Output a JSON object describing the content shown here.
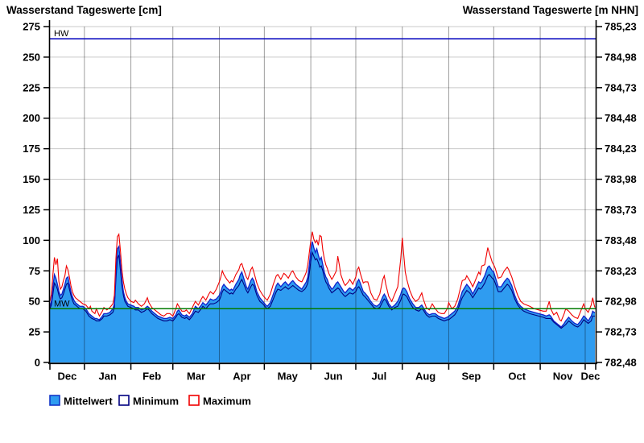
{
  "chart_data": {
    "type": "area",
    "title_left": "Wasserstand Tageswerte [cm]",
    "title_right": "Wasserstand Tageswerte [m NHN]",
    "y_left": {
      "unit": "cm",
      "min": 0,
      "max": 275,
      "tick_step": 25,
      "ticks": [
        0,
        25,
        50,
        75,
        100,
        125,
        150,
        175,
        200,
        225,
        250,
        275
      ]
    },
    "y_right": {
      "unit": "m NHN",
      "min": 782.48,
      "max": 785.23,
      "tick_step": 0.25,
      "ticks": [
        "782,48",
        "782,73",
        "782,98",
        "783,23",
        "783,48",
        "783,73",
        "783,98",
        "784,23",
        "784,48",
        "784,73",
        "784,98",
        "785,23"
      ]
    },
    "x": {
      "days_total": 364,
      "month_boundaries_day": [
        0,
        23,
        54,
        82,
        113,
        143,
        174,
        204,
        235,
        266,
        296,
        327,
        357,
        364
      ],
      "month_labels": [
        "Dec",
        "Jan",
        "Feb",
        "Mar",
        "Apr",
        "May",
        "Jun",
        "Jul",
        "Aug",
        "Sep",
        "Oct",
        "Nov",
        "Dec"
      ]
    },
    "reference_lines": [
      {
        "label": "HW",
        "value_cm": 265,
        "color": "#0000BE"
      },
      {
        "label": "MW",
        "value_cm": 44,
        "color": "#007A00"
      }
    ],
    "series_meta": [
      {
        "name": "Mittelwert",
        "type": "area",
        "fill": "#2F9CF0",
        "stroke": "#1020CC"
      },
      {
        "name": "Minimum",
        "type": "line",
        "stroke": "#000080"
      },
      {
        "name": "Maximum",
        "type": "line",
        "stroke": "#F00000"
      }
    ],
    "colors": {
      "h_grid": "#C9C9C9",
      "v_grid": "rgba(0,0,0,0.38)",
      "axis": "#000000"
    },
    "points_day_mean_min_max": [
      [
        0,
        46,
        44,
        50
      ],
      [
        1,
        50,
        47,
        56
      ],
      [
        2,
        62,
        56,
        72
      ],
      [
        3,
        72,
        65,
        86
      ],
      [
        4,
        69,
        63,
        80
      ],
      [
        5,
        64,
        60,
        85
      ],
      [
        6,
        58,
        55,
        66
      ],
      [
        7,
        55,
        52,
        60
      ],
      [
        8,
        56,
        53,
        62
      ],
      [
        9,
        60,
        56,
        67
      ],
      [
        10,
        64,
        60,
        71
      ],
      [
        11,
        69,
        64,
        79
      ],
      [
        12,
        70,
        65,
        76
      ],
      [
        13,
        64,
        60,
        70
      ],
      [
        14,
        58,
        55,
        63
      ],
      [
        15,
        54,
        51,
        58
      ],
      [
        16,
        51,
        48,
        55
      ],
      [
        17,
        49,
        47,
        53
      ],
      [
        18,
        48,
        46,
        52
      ],
      [
        19,
        47,
        45,
        51
      ],
      [
        20,
        46,
        44,
        50
      ],
      [
        22,
        46,
        44,
        48
      ],
      [
        24,
        44,
        42,
        47
      ],
      [
        26,
        40,
        38,
        44
      ],
      [
        27,
        39,
        37,
        46
      ],
      [
        28,
        38,
        36,
        42
      ],
      [
        30,
        36,
        35,
        40
      ],
      [
        31,
        36,
        34,
        44
      ],
      [
        33,
        35,
        34,
        38
      ],
      [
        35,
        38,
        36,
        42
      ],
      [
        36,
        40,
        38,
        45
      ],
      [
        38,
        40,
        38,
        43
      ],
      [
        40,
        41,
        39,
        45
      ],
      [
        42,
        44,
        41,
        48
      ],
      [
        43,
        48,
        45,
        55
      ],
      [
        44,
        75,
        68,
        85
      ],
      [
        45,
        93,
        85,
        103
      ],
      [
        46,
        95,
        88,
        105
      ],
      [
        47,
        82,
        76,
        92
      ],
      [
        48,
        68,
        63,
        76
      ],
      [
        49,
        58,
        55,
        66
      ],
      [
        50,
        53,
        50,
        60
      ],
      [
        51,
        50,
        48,
        56
      ],
      [
        52,
        48,
        46,
        53
      ],
      [
        54,
        47,
        45,
        50
      ],
      [
        56,
        46,
        44,
        49
      ],
      [
        57,
        45,
        43,
        51
      ],
      [
        59,
        45,
        43,
        48
      ],
      [
        61,
        43,
        41,
        46
      ],
      [
        63,
        44,
        42,
        48
      ],
      [
        65,
        46,
        44,
        53
      ],
      [
        66,
        45,
        43,
        49
      ],
      [
        68,
        42,
        40,
        45
      ],
      [
        70,
        40,
        38,
        43
      ],
      [
        72,
        38,
        36,
        41
      ],
      [
        74,
        37,
        35,
        39
      ],
      [
        76,
        36,
        34,
        38
      ],
      [
        78,
        36,
        34,
        40
      ],
      [
        80,
        37,
        35,
        40
      ],
      [
        82,
        36,
        34,
        38
      ],
      [
        84,
        39,
        37,
        44
      ],
      [
        85,
        42,
        39,
        48
      ],
      [
        86,
        43,
        40,
        46
      ],
      [
        88,
        39,
        37,
        42
      ],
      [
        90,
        38,
        36,
        42
      ],
      [
        91,
        39,
        37,
        43
      ],
      [
        93,
        37,
        35,
        40
      ],
      [
        95,
        40,
        38,
        45
      ],
      [
        97,
        46,
        42,
        50
      ],
      [
        99,
        44,
        41,
        47
      ],
      [
        101,
        47,
        44,
        52
      ],
      [
        102,
        49,
        46,
        54
      ],
      [
        104,
        47,
        44,
        51
      ],
      [
        106,
        50,
        47,
        56
      ],
      [
        107,
        52,
        48,
        58
      ],
      [
        109,
        51,
        48,
        56
      ],
      [
        111,
        52,
        49,
        60
      ],
      [
        113,
        55,
        51,
        66
      ],
      [
        114,
        58,
        54,
        70
      ],
      [
        115,
        62,
        58,
        75
      ],
      [
        116,
        64,
        60,
        72
      ],
      [
        118,
        61,
        58,
        68
      ],
      [
        120,
        59,
        56,
        65
      ],
      [
        121,
        60,
        57,
        67
      ],
      [
        122,
        59,
        56,
        66
      ],
      [
        124,
        64,
        60,
        72
      ],
      [
        126,
        68,
        63,
        76
      ],
      [
        127,
        72,
        66,
        80
      ],
      [
        128,
        74,
        68,
        81
      ],
      [
        129,
        70,
        65,
        77
      ],
      [
        131,
        62,
        59,
        70
      ],
      [
        132,
        60,
        57,
        68
      ],
      [
        134,
        67,
        62,
        76
      ],
      [
        135,
        69,
        64,
        78
      ],
      [
        136,
        67,
        63,
        74
      ],
      [
        138,
        58,
        55,
        65
      ],
      [
        140,
        53,
        50,
        59
      ],
      [
        142,
        50,
        48,
        55
      ],
      [
        144,
        47,
        45,
        52
      ],
      [
        145,
        46,
        44,
        51
      ],
      [
        147,
        49,
        46,
        56
      ],
      [
        149,
        56,
        52,
        64
      ],
      [
        151,
        63,
        58,
        71
      ],
      [
        152,
        65,
        60,
        72
      ],
      [
        154,
        62,
        59,
        68
      ],
      [
        156,
        65,
        61,
        73
      ],
      [
        157,
        66,
        62,
        72
      ],
      [
        159,
        63,
        60,
        69
      ],
      [
        161,
        66,
        62,
        74
      ],
      [
        162,
        67,
        63,
        75
      ],
      [
        164,
        64,
        61,
        70
      ],
      [
        166,
        62,
        59,
        67
      ],
      [
        168,
        60,
        58,
        66
      ],
      [
        170,
        64,
        60,
        71
      ],
      [
        171,
        66,
        62,
        74
      ],
      [
        172,
        70,
        65,
        80
      ],
      [
        173,
        80,
        73,
        90
      ],
      [
        174,
        92,
        83,
        100
      ],
      [
        175,
        99,
        90,
        107
      ],
      [
        176,
        94,
        87,
        101
      ],
      [
        177,
        90,
        84,
        98
      ],
      [
        178,
        93,
        85,
        100
      ],
      [
        179,
        88,
        82,
        96
      ],
      [
        180,
        84,
        78,
        104
      ],
      [
        181,
        86,
        79,
        103
      ],
      [
        182,
        80,
        75,
        92
      ],
      [
        183,
        74,
        70,
        85
      ],
      [
        184,
        70,
        66,
        80
      ],
      [
        185,
        68,
        64,
        77
      ],
      [
        186,
        64,
        61,
        73
      ],
      [
        188,
        60,
        57,
        68
      ],
      [
        189,
        61,
        58,
        70
      ],
      [
        191,
        65,
        60,
        75
      ],
      [
        192,
        66,
        61,
        87
      ],
      [
        193,
        64,
        60,
        80
      ],
      [
        194,
        62,
        58,
        72
      ],
      [
        196,
        58,
        55,
        65
      ],
      [
        197,
        57,
        54,
        63
      ],
      [
        199,
        60,
        56,
        66
      ],
      [
        200,
        61,
        57,
        68
      ],
      [
        202,
        59,
        56,
        64
      ],
      [
        204,
        62,
        58,
        70
      ],
      [
        205,
        66,
        61,
        76
      ],
      [
        206,
        68,
        62,
        78
      ],
      [
        207,
        65,
        60,
        73
      ],
      [
        209,
        58,
        55,
        65
      ],
      [
        210,
        57,
        54,
        66
      ],
      [
        212,
        54,
        51,
        66
      ],
      [
        214,
        50,
        48,
        57
      ],
      [
        216,
        47,
        45,
        52
      ],
      [
        218,
        46,
        44,
        51
      ],
      [
        220,
        48,
        45,
        56
      ],
      [
        222,
        54,
        50,
        68
      ],
      [
        223,
        56,
        52,
        71
      ],
      [
        224,
        54,
        51,
        64
      ],
      [
        226,
        48,
        46,
        54
      ],
      [
        228,
        45,
        43,
        50
      ],
      [
        230,
        47,
        45,
        56
      ],
      [
        232,
        50,
        46,
        62
      ],
      [
        234,
        56,
        51,
        85
      ],
      [
        235,
        60,
        55,
        102
      ],
      [
        236,
        61,
        56,
        88
      ],
      [
        237,
        60,
        55,
        74
      ],
      [
        238,
        58,
        54,
        68
      ],
      [
        240,
        52,
        49,
        59
      ],
      [
        242,
        48,
        45,
        53
      ],
      [
        244,
        45,
        43,
        50
      ],
      [
        246,
        45,
        42,
        52
      ],
      [
        248,
        47,
        44,
        57
      ],
      [
        249,
        45,
        43,
        52
      ],
      [
        251,
        41,
        39,
        45
      ],
      [
        253,
        39,
        37,
        43
      ],
      [
        255,
        40,
        38,
        48
      ],
      [
        257,
        40,
        38,
        44
      ],
      [
        259,
        38,
        36,
        41
      ],
      [
        261,
        37,
        35,
        40
      ],
      [
        263,
        36,
        34,
        40
      ],
      [
        265,
        37,
        35,
        44
      ],
      [
        266,
        38,
        35,
        49
      ],
      [
        268,
        40,
        37,
        44
      ],
      [
        270,
        42,
        39,
        46
      ],
      [
        272,
        46,
        43,
        52
      ],
      [
        274,
        54,
        50,
        62
      ],
      [
        275,
        58,
        53,
        67
      ],
      [
        277,
        62,
        57,
        68
      ],
      [
        278,
        64,
        59,
        71
      ],
      [
        280,
        61,
        57,
        67
      ],
      [
        282,
        56,
        53,
        62
      ],
      [
        284,
        61,
        57,
        68
      ],
      [
        286,
        66,
        61,
        74
      ],
      [
        287,
        65,
        60,
        72
      ],
      [
        288,
        66,
        61,
        79
      ],
      [
        290,
        71,
        65,
        80
      ],
      [
        292,
        78,
        71,
        94
      ],
      [
        293,
        79,
        72,
        90
      ],
      [
        295,
        75,
        69,
        82
      ],
      [
        296,
        74,
        68,
        80
      ],
      [
        297,
        70,
        65,
        77
      ],
      [
        299,
        62,
        58,
        69
      ],
      [
        301,
        62,
        58,
        70
      ],
      [
        303,
        66,
        61,
        75
      ],
      [
        305,
        69,
        64,
        78
      ],
      [
        306,
        68,
        63,
        76
      ],
      [
        308,
        63,
        59,
        70
      ],
      [
        310,
        55,
        52,
        62
      ],
      [
        312,
        49,
        47,
        55
      ],
      [
        314,
        46,
        44,
        50
      ],
      [
        316,
        44,
        42,
        48
      ],
      [
        318,
        43,
        41,
        47
      ],
      [
        320,
        42,
        40,
        46
      ],
      [
        323,
        41,
        39,
        44
      ],
      [
        326,
        40,
        38,
        43
      ],
      [
        329,
        39,
        37,
        42
      ],
      [
        331,
        38,
        36,
        42
      ],
      [
        333,
        39,
        36,
        50
      ],
      [
        334,
        38,
        36,
        44
      ],
      [
        336,
        34,
        33,
        39
      ],
      [
        338,
        32,
        31,
        41
      ],
      [
        340,
        30,
        29,
        35
      ],
      [
        341,
        29,
        28,
        34
      ],
      [
        343,
        32,
        30,
        40
      ],
      [
        344,
        34,
        31,
        44
      ],
      [
        346,
        37,
        34,
        42
      ],
      [
        348,
        34,
        32,
        39
      ],
      [
        350,
        32,
        30,
        37
      ],
      [
        352,
        31,
        29,
        36
      ],
      [
        354,
        34,
        31,
        42
      ],
      [
        356,
        38,
        35,
        48
      ],
      [
        357,
        37,
        34,
        44
      ],
      [
        359,
        34,
        32,
        41
      ],
      [
        361,
        38,
        34,
        47
      ],
      [
        362,
        42,
        38,
        53
      ],
      [
        363,
        41,
        38,
        47
      ],
      [
        363.5,
        41,
        38,
        45
      ]
    ]
  },
  "legend": {
    "items": [
      {
        "label": "Mittelwert",
        "fill": "#2F9CF0",
        "border": "#1437C8"
      },
      {
        "label": "Minimum",
        "fill": "#FFFFFF",
        "border": "#000080"
      },
      {
        "label": "Maximum",
        "fill": "#FFFFFF",
        "border": "#F00000"
      }
    ]
  }
}
